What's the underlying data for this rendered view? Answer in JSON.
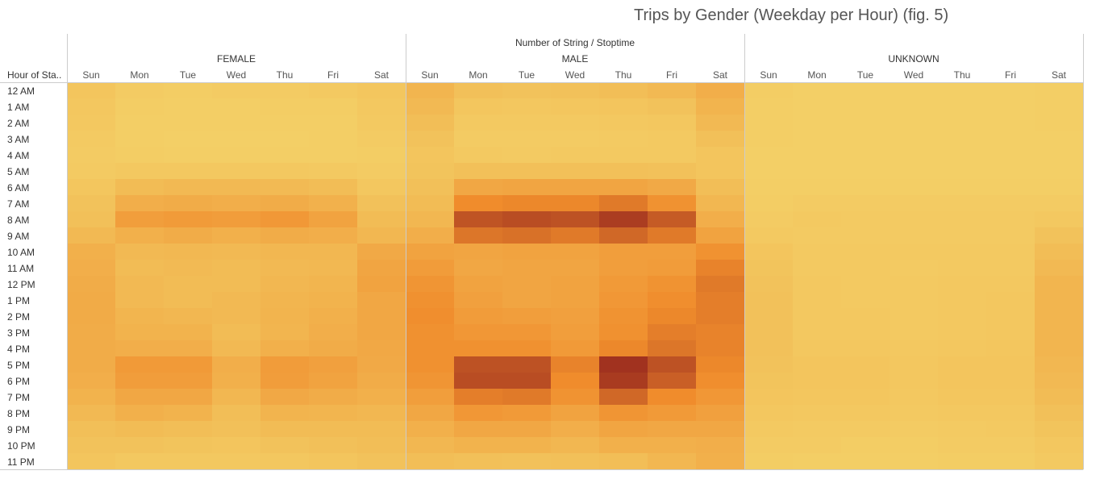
{
  "title": "Trips by Gender (Weekday per Hour)  (fig. 5)",
  "column_header": "Number of String / Stoptime",
  "row_header": "Hour of Sta..",
  "colors": {
    "low": "#f3d067",
    "mid": "#f08c2c",
    "high": "#a1321f",
    "divider": "#cccccc",
    "text": "#333333"
  },
  "chart_data": {
    "type": "heatmap",
    "title": "Trips by Gender (Weekday per Hour)  (fig. 5)",
    "column_header": "Number of String / Stoptime",
    "row_header": "Hour of Sta..",
    "groups": [
      "FEMALE",
      "MALE",
      "UNKNOWN"
    ],
    "days": [
      "Sun",
      "Mon",
      "Tue",
      "Wed",
      "Thu",
      "Fri",
      "Sat"
    ],
    "hours": [
      "12 AM",
      "1 AM",
      "2 AM",
      "3 AM",
      "4 AM",
      "5 AM",
      "6 AM",
      "7 AM",
      "8 AM",
      "9 AM",
      "10 AM",
      "11 AM",
      "12 PM",
      "1 PM",
      "2 PM",
      "3 PM",
      "4 PM",
      "5 PM",
      "6 PM",
      "7 PM",
      "8 PM",
      "9 PM",
      "10 PM",
      "11 PM"
    ],
    "value_scale": "relative intensity 0-100",
    "values": {
      "FEMALE": [
        [
          10,
          4,
          3,
          4,
          4,
          6,
          9
        ],
        [
          8,
          3,
          2,
          2,
          3,
          3,
          7
        ],
        [
          7,
          2,
          2,
          2,
          2,
          2,
          6
        ],
        [
          5,
          2,
          1,
          1,
          1,
          2,
          4
        ],
        [
          4,
          3,
          2,
          2,
          2,
          2,
          3
        ],
        [
          5,
          7,
          7,
          7,
          7,
          6,
          4
        ],
        [
          9,
          18,
          20,
          20,
          19,
          17,
          8
        ],
        [
          12,
          30,
          32,
          30,
          32,
          27,
          13
        ],
        [
          14,
          44,
          47,
          45,
          49,
          40,
          18
        ],
        [
          20,
          28,
          32,
          28,
          32,
          30,
          22
        ],
        [
          28,
          20,
          21,
          20,
          22,
          22,
          34
        ],
        [
          30,
          18,
          19,
          18,
          20,
          21,
          38
        ],
        [
          32,
          20,
          18,
          18,
          22,
          24,
          40
        ],
        [
          33,
          20,
          18,
          20,
          24,
          26,
          36
        ],
        [
          33,
          24,
          22,
          20,
          25,
          28,
          36
        ],
        [
          32,
          26,
          26,
          18,
          24,
          30,
          36
        ],
        [
          32,
          30,
          30,
          20,
          28,
          32,
          35
        ],
        [
          32,
          48,
          48,
          30,
          46,
          42,
          34
        ],
        [
          30,
          45,
          45,
          28,
          45,
          40,
          32
        ],
        [
          26,
          36,
          36,
          22,
          35,
          32,
          28
        ],
        [
          20,
          28,
          26,
          16,
          25,
          24,
          22
        ],
        [
          15,
          18,
          16,
          14,
          18,
          18,
          18
        ],
        [
          12,
          12,
          11,
          10,
          12,
          14,
          16
        ],
        [
          10,
          7,
          7,
          7,
          8,
          10,
          12
        ]
      ],
      "MALE": [
        [
          24,
          14,
          12,
          13,
          16,
          20,
          30
        ],
        [
          20,
          9,
          8,
          9,
          10,
          12,
          25
        ],
        [
          16,
          6,
          6,
          6,
          7,
          8,
          20
        ],
        [
          12,
          4,
          4,
          4,
          5,
          6,
          14
        ],
        [
          10,
          6,
          5,
          6,
          6,
          6,
          10
        ],
        [
          11,
          14,
          14,
          14,
          14,
          13,
          10
        ],
        [
          14,
          36,
          38,
          38,
          38,
          34,
          16
        ],
        [
          18,
          60,
          62,
          62,
          68,
          55,
          22
        ],
        [
          22,
          85,
          88,
          86,
          95,
          82,
          30
        ],
        [
          30,
          70,
          72,
          68,
          76,
          68,
          40
        ],
        [
          40,
          38,
          40,
          40,
          44,
          44,
          55
        ],
        [
          46,
          36,
          38,
          38,
          44,
          46,
          64
        ],
        [
          52,
          40,
          38,
          40,
          48,
          54,
          68
        ],
        [
          56,
          42,
          38,
          40,
          50,
          58,
          66
        ],
        [
          58,
          46,
          44,
          42,
          54,
          62,
          66
        ],
        [
          56,
          50,
          50,
          44,
          56,
          66,
          64
        ],
        [
          56,
          56,
          56,
          48,
          62,
          70,
          64
        ],
        [
          56,
          86,
          86,
          64,
          100,
          86,
          62
        ],
        [
          52,
          88,
          88,
          60,
          96,
          80,
          58
        ],
        [
          44,
          66,
          68,
          54,
          76,
          60,
          50
        ],
        [
          36,
          50,
          48,
          40,
          52,
          48,
          42
        ],
        [
          28,
          36,
          36,
          30,
          38,
          36,
          36
        ],
        [
          22,
          26,
          26,
          22,
          28,
          28,
          30
        ],
        [
          16,
          14,
          13,
          14,
          16,
          22,
          28
        ]
      ],
      "UNKNOWN": [
        [
          3,
          1,
          1,
          1,
          1,
          1,
          2
        ],
        [
          2,
          1,
          1,
          1,
          1,
          1,
          2
        ],
        [
          2,
          1,
          1,
          1,
          1,
          1,
          2
        ],
        [
          2,
          1,
          1,
          1,
          1,
          1,
          1
        ],
        [
          1,
          1,
          1,
          1,
          1,
          1,
          1
        ],
        [
          1,
          1,
          1,
          1,
          1,
          1,
          1
        ],
        [
          2,
          2,
          2,
          2,
          2,
          2,
          2
        ],
        [
          3,
          4,
          4,
          4,
          4,
          4,
          4
        ],
        [
          4,
          6,
          5,
          5,
          5,
          5,
          7
        ],
        [
          6,
          5,
          5,
          5,
          5,
          5,
          12
        ],
        [
          10,
          6,
          6,
          6,
          6,
          6,
          17
        ],
        [
          11,
          6,
          6,
          5,
          6,
          6,
          20
        ],
        [
          12,
          7,
          6,
          6,
          7,
          7,
          24
        ],
        [
          13,
          7,
          6,
          6,
          7,
          8,
          24
        ],
        [
          13,
          7,
          7,
          6,
          7,
          8,
          24
        ],
        [
          13,
          7,
          7,
          6,
          7,
          8,
          24
        ],
        [
          13,
          8,
          8,
          7,
          8,
          9,
          24
        ],
        [
          12,
          10,
          10,
          8,
          10,
          10,
          22
        ],
        [
          11,
          10,
          10,
          8,
          10,
          10,
          20
        ],
        [
          10,
          9,
          9,
          7,
          9,
          9,
          18
        ],
        [
          8,
          7,
          7,
          6,
          7,
          7,
          14
        ],
        [
          6,
          5,
          5,
          4,
          5,
          6,
          11
        ],
        [
          4,
          4,
          3,
          3,
          4,
          4,
          8
        ],
        [
          3,
          2,
          2,
          2,
          3,
          3,
          6
        ]
      ]
    }
  }
}
